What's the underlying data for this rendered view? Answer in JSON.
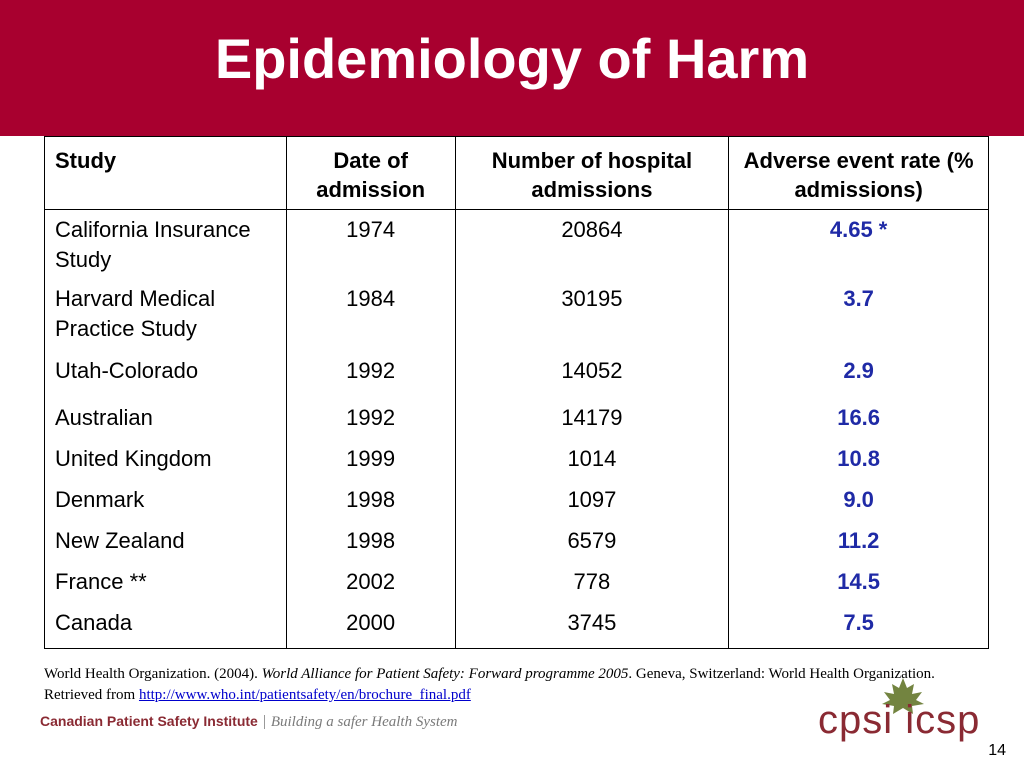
{
  "title": "Epidemiology of Harm",
  "colors": {
    "title_bar": "#a8002f",
    "rate_text": "#1f2aa6",
    "link": "#0000cc",
    "brand": "#8a2a33",
    "leaf": "#5a6e1e"
  },
  "table": {
    "headers": [
      "Study",
      "Date of admission",
      "Number of hospital admissions",
      "Adverse event rate (% admissions)"
    ],
    "rows": [
      {
        "study": "California Insurance Study",
        "date": "1974",
        "admissions": "20864",
        "rate": "4.65 *"
      },
      {
        "study": "Harvard Medical Practice Study",
        "date": "1984",
        "admissions": "30195",
        "rate": "3.7"
      },
      {
        "study": "Utah-Colorado",
        "date": "1992",
        "admissions": "14052",
        "rate": "2.9"
      },
      {
        "study": "Australian",
        "date": "1992",
        "admissions": "14179",
        "rate": "16.6"
      },
      {
        "study": "United Kingdom",
        "date": "1999",
        "admissions": "1014",
        "rate": "10.8"
      },
      {
        "study": "Denmark",
        "date": "1998",
        "admissions": "1097",
        "rate": "9.0"
      },
      {
        "study": "New Zealand",
        "date": "1998",
        "admissions": "6579",
        "rate": "11.2"
      },
      {
        "study": "France **",
        "date": "2002",
        "admissions": "778",
        "rate": "14.5"
      },
      {
        "study": "Canada",
        "date": "2000",
        "admissions": "3745",
        "rate": "7.5"
      }
    ]
  },
  "reference": {
    "before": "World Health Organization. (2004). ",
    "italic": "World Alliance for Patient Safety: Forward programme 2005",
    "after": ". Geneva, Switzerland: World Health Organization. Retrieved from ",
    "link": "http://www.who.int/patientsafety/en/brochure_final.pdf"
  },
  "footer": {
    "org": "Canadian Patient Safety Institute",
    "tagline": "Building a safer Health System",
    "logo_text": "cpsi icsp",
    "page_number": "14"
  },
  "icons": {
    "logo": "maple-leaf-icon"
  }
}
